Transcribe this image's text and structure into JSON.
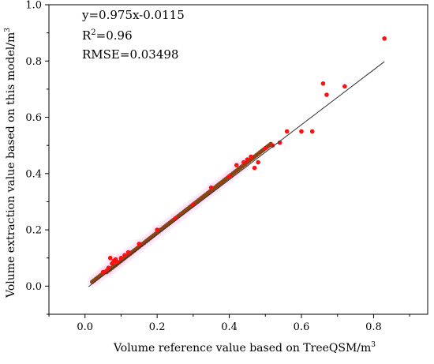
{
  "chart_data": {
    "type": "scatter",
    "xlabel": "Volume reference value based on TreeQSM/m",
    "xlabel_sup": "3",
    "ylabel": "Volume extraction value based on this model/m",
    "ylabel_sup": "3",
    "xlim": [
      -0.1,
      0.95
    ],
    "ylim": [
      -0.1,
      1.0
    ],
    "x_ticks": [
      0.0,
      0.2,
      0.4,
      0.6,
      0.8
    ],
    "x_tick_labels": [
      "0.0",
      "0.2",
      "0.4",
      "0.6",
      "0.8"
    ],
    "y_ticks": [
      0.0,
      0.2,
      0.4,
      0.6,
      0.8,
      1.0
    ],
    "y_tick_labels": [
      "0.0",
      "0.2",
      "0.4",
      "0.6",
      "0.8",
      "1.0"
    ],
    "grid": false,
    "annotations": {
      "equation": "y=0.975x-0.0115",
      "r2_prefix": "R",
      "r2_sup": "2",
      "r2_value": "=0.96",
      "rmse": "RMSE=0.03498"
    },
    "fit_line": {
      "slope": 0.975,
      "intercept": -0.0115,
      "x_range": [
        0.01,
        0.83
      ],
      "color": "#303030"
    },
    "colors": {
      "brown": "#8B4513",
      "red": "#FF1010",
      "line": "#303030",
      "shading": "#FAD8F4"
    },
    "series": [
      {
        "color": "#8B4513",
        "points": [
          [
            0.02,
            0.015
          ],
          [
            0.025,
            0.02
          ],
          [
            0.03,
            0.025
          ],
          [
            0.035,
            0.03
          ],
          [
            0.04,
            0.035
          ],
          [
            0.045,
            0.04
          ],
          [
            0.05,
            0.045
          ],
          [
            0.055,
            0.05
          ],
          [
            0.06,
            0.05
          ],
          [
            0.065,
            0.055
          ],
          [
            0.07,
            0.06
          ],
          [
            0.075,
            0.065
          ],
          [
            0.08,
            0.07
          ],
          [
            0.085,
            0.075
          ],
          [
            0.09,
            0.08
          ],
          [
            0.095,
            0.085
          ],
          [
            0.1,
            0.09
          ],
          [
            0.105,
            0.095
          ],
          [
            0.11,
            0.1
          ],
          [
            0.115,
            0.105
          ],
          [
            0.12,
            0.11
          ],
          [
            0.125,
            0.115
          ],
          [
            0.13,
            0.12
          ],
          [
            0.135,
            0.125
          ],
          [
            0.14,
            0.13
          ],
          [
            0.145,
            0.135
          ],
          [
            0.15,
            0.14
          ],
          [
            0.155,
            0.145
          ],
          [
            0.16,
            0.15
          ],
          [
            0.165,
            0.155
          ],
          [
            0.17,
            0.16
          ],
          [
            0.175,
            0.165
          ],
          [
            0.18,
            0.17
          ],
          [
            0.185,
            0.175
          ],
          [
            0.19,
            0.18
          ],
          [
            0.195,
            0.185
          ],
          [
            0.2,
            0.19
          ],
          [
            0.205,
            0.195
          ],
          [
            0.21,
            0.2
          ],
          [
            0.215,
            0.205
          ],
          [
            0.22,
            0.21
          ],
          [
            0.225,
            0.215
          ],
          [
            0.23,
            0.22
          ],
          [
            0.235,
            0.225
          ],
          [
            0.24,
            0.23
          ],
          [
            0.245,
            0.235
          ],
          [
            0.25,
            0.24
          ],
          [
            0.255,
            0.245
          ],
          [
            0.26,
            0.25
          ],
          [
            0.265,
            0.255
          ],
          [
            0.27,
            0.26
          ],
          [
            0.275,
            0.265
          ],
          [
            0.28,
            0.27
          ],
          [
            0.285,
            0.275
          ],
          [
            0.29,
            0.28
          ],
          [
            0.295,
            0.285
          ],
          [
            0.3,
            0.29
          ],
          [
            0.305,
            0.295
          ],
          [
            0.31,
            0.3
          ],
          [
            0.315,
            0.305
          ],
          [
            0.32,
            0.31
          ],
          [
            0.325,
            0.315
          ],
          [
            0.33,
            0.32
          ],
          [
            0.335,
            0.325
          ],
          [
            0.34,
            0.33
          ],
          [
            0.345,
            0.335
          ],
          [
            0.35,
            0.34
          ],
          [
            0.355,
            0.345
          ],
          [
            0.36,
            0.35
          ],
          [
            0.365,
            0.355
          ],
          [
            0.37,
            0.36
          ],
          [
            0.375,
            0.365
          ],
          [
            0.38,
            0.37
          ],
          [
            0.385,
            0.375
          ],
          [
            0.39,
            0.38
          ],
          [
            0.395,
            0.385
          ],
          [
            0.4,
            0.39
          ],
          [
            0.405,
            0.395
          ],
          [
            0.41,
            0.4
          ],
          [
            0.415,
            0.405
          ],
          [
            0.42,
            0.41
          ],
          [
            0.425,
            0.415
          ],
          [
            0.43,
            0.42
          ],
          [
            0.435,
            0.425
          ],
          [
            0.44,
            0.43
          ],
          [
            0.445,
            0.435
          ],
          [
            0.45,
            0.44
          ],
          [
            0.455,
            0.445
          ],
          [
            0.46,
            0.45
          ],
          [
            0.465,
            0.455
          ],
          [
            0.47,
            0.46
          ],
          [
            0.475,
            0.465
          ],
          [
            0.48,
            0.47
          ],
          [
            0.485,
            0.475
          ],
          [
            0.49,
            0.48
          ],
          [
            0.495,
            0.485
          ],
          [
            0.5,
            0.49
          ],
          [
            0.505,
            0.495
          ],
          [
            0.51,
            0.5
          ],
          [
            0.515,
            0.505
          ]
        ]
      },
      {
        "color": "#FF1010",
        "points": [
          [
            0.05,
            0.05
          ],
          [
            0.06,
            0.055
          ],
          [
            0.065,
            0.065
          ],
          [
            0.07,
            0.1
          ],
          [
            0.075,
            0.08
          ],
          [
            0.08,
            0.09
          ],
          [
            0.085,
            0.095
          ],
          [
            0.09,
            0.085
          ],
          [
            0.1,
            0.1
          ],
          [
            0.11,
            0.11
          ],
          [
            0.12,
            0.12
          ],
          [
            0.15,
            0.15
          ],
          [
            0.2,
            0.2
          ],
          [
            0.25,
            0.24
          ],
          [
            0.3,
            0.29
          ],
          [
            0.35,
            0.35
          ],
          [
            0.4,
            0.39
          ],
          [
            0.42,
            0.43
          ],
          [
            0.44,
            0.44
          ],
          [
            0.45,
            0.45
          ],
          [
            0.46,
            0.46
          ],
          [
            0.47,
            0.42
          ],
          [
            0.48,
            0.44
          ],
          [
            0.5,
            0.49
          ],
          [
            0.52,
            0.5
          ],
          [
            0.54,
            0.51
          ],
          [
            0.56,
            0.55
          ],
          [
            0.6,
            0.55
          ],
          [
            0.63,
            0.55
          ],
          [
            0.66,
            0.72
          ],
          [
            0.67,
            0.68
          ],
          [
            0.72,
            0.71
          ],
          [
            0.83,
            0.88
          ]
        ]
      }
    ]
  }
}
